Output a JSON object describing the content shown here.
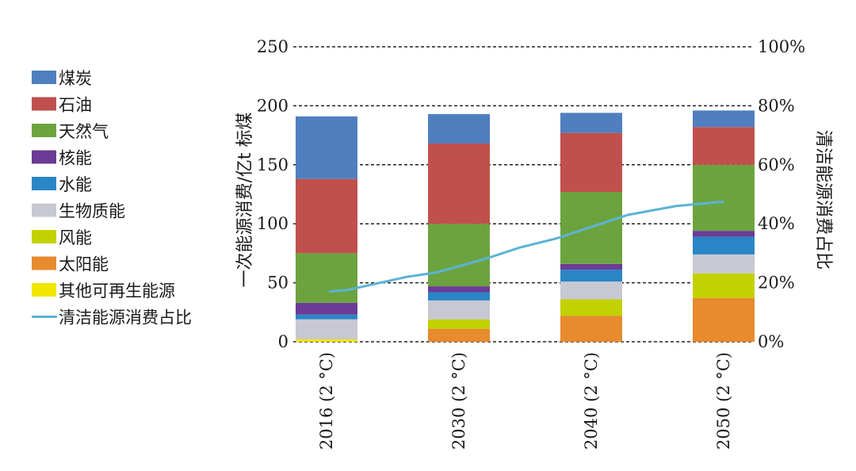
{
  "chart_data": {
    "type": "bar",
    "stacked": true,
    "categories": [
      "2016 (2 °C)",
      "2030 (2 °C)",
      "2040 (2 °C)",
      "2050 (2 °C)"
    ],
    "ylabel": "一次能源消费/亿t 标煤",
    "y2label": "清洁能源消费占比",
    "ylim": [
      0,
      250
    ],
    "yticks": [
      "0",
      "50",
      "100",
      "150",
      "200",
      "250"
    ],
    "y2lim": [
      0,
      100
    ],
    "y2ticks": [
      "0%",
      "20%",
      "40%",
      "60%",
      "80%",
      "100%"
    ],
    "grid": "dashed horizontal",
    "legend_position": "left",
    "series": [
      {
        "name": "其他可再生能源",
        "color": "#f2e500",
        "values": [
          2,
          0,
          0,
          0
        ]
      },
      {
        "name": "太阳能",
        "color": "#e88a2e",
        "values": [
          0,
          11,
          22,
          37
        ]
      },
      {
        "name": "风能",
        "color": "#c3d100",
        "values": [
          0,
          8,
          14,
          21
        ]
      },
      {
        "name": "生物质能",
        "color": "#c8c8d2",
        "values": [
          17,
          16,
          15,
          16
        ]
      },
      {
        "name": "水能",
        "color": "#2a86c6",
        "values": [
          4,
          7,
          10,
          15
        ]
      },
      {
        "name": "核能",
        "color": "#6b3c97",
        "values": [
          10,
          5,
          5,
          5
        ]
      },
      {
        "name": "天然气",
        "color": "#6ca33e",
        "values": [
          42,
          53,
          61,
          56
        ]
      },
      {
        "name": "石油",
        "color": "#c0504d",
        "values": [
          63,
          68,
          50,
          32
        ]
      },
      {
        "name": "煤炭",
        "color": "#4f7fbf",
        "values": [
          53,
          25,
          17,
          14
        ]
      }
    ],
    "line_series": {
      "name": "清洁能源消费占比",
      "color": "#5bb3d6",
      "x_positions": [
        0,
        0.3,
        1.3,
        1.8,
        2.6,
        3.2,
        3.8,
        4.4,
        5.0,
        5.8,
        6.6
      ],
      "values": [
        17,
        17.5,
        22,
        23.5,
        28,
        32,
        35,
        39,
        43,
        46,
        47.5
      ]
    },
    "legend_order": [
      "煤炭",
      "石油",
      "天然气",
      "核能",
      "水能",
      "生物质能",
      "风能",
      "太阳能",
      "其他可再生能源",
      "清洁能源消费占比"
    ]
  }
}
